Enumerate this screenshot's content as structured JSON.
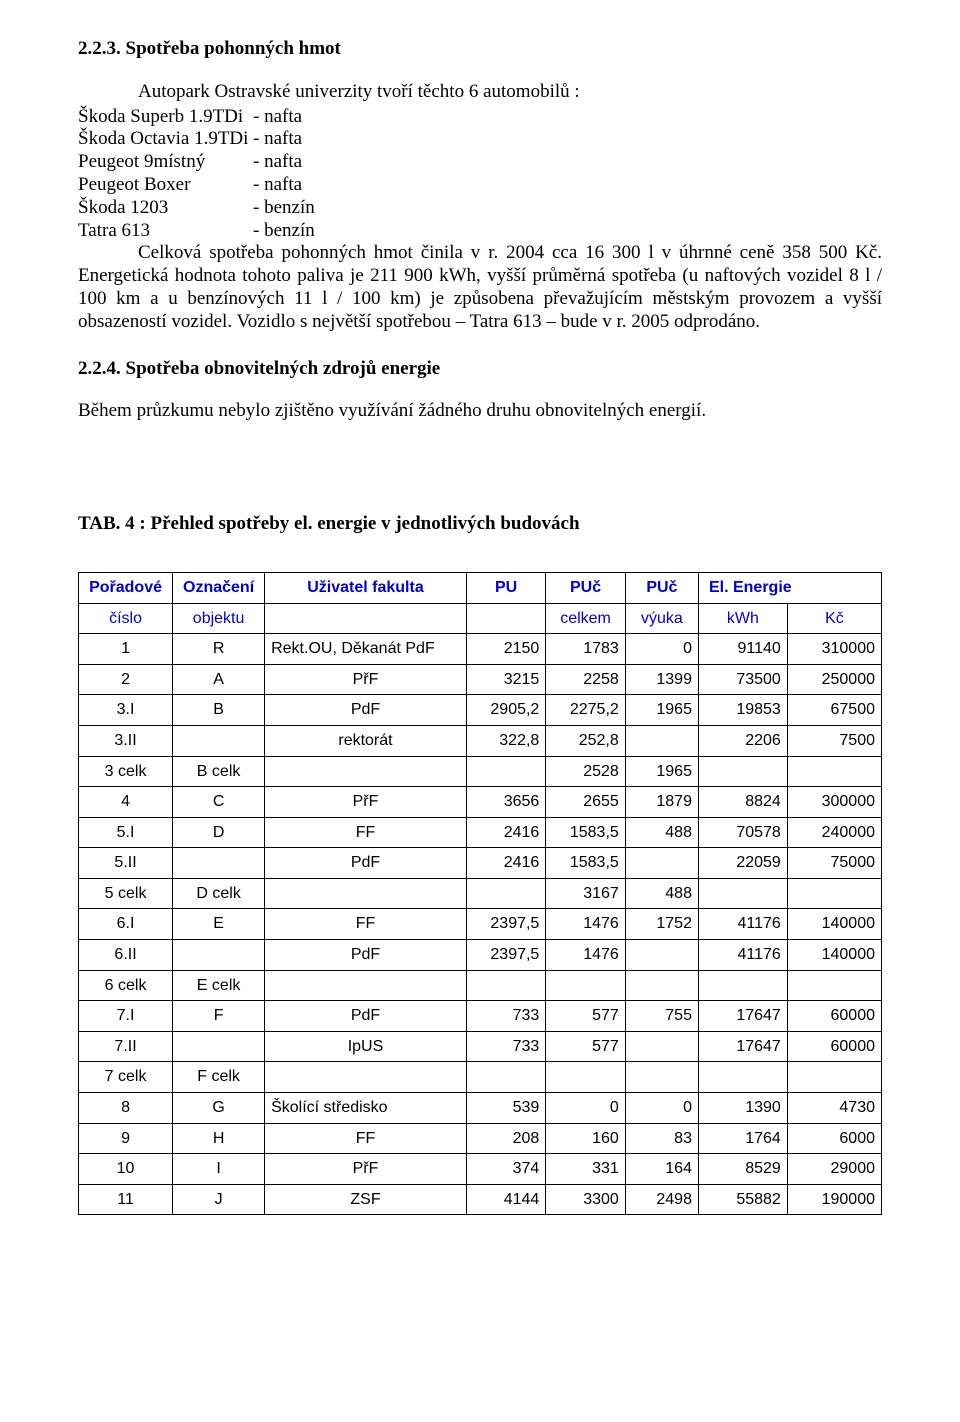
{
  "section_fuel": {
    "heading": "2.2.3. Spotřeba pohonných hmot",
    "intro": "Autopark Ostravské univerzity tvoří těchto 6 automobilů :",
    "vehicles": [
      {
        "name": "Škoda Superb 1.9TDi",
        "fuel": "- nafta"
      },
      {
        "name": "Škoda Octavia 1.9TDi",
        "fuel": "- nafta"
      },
      {
        "name": "Peugeot 9místný",
        "fuel": "- nafta"
      },
      {
        "name": "Peugeot Boxer",
        "fuel": "- nafta"
      },
      {
        "name": "Škoda 1203",
        "fuel": "- benzín"
      },
      {
        "name": "Tatra 613",
        "fuel": "- benzín"
      }
    ],
    "paragraph": "Celková spotřeba pohonných hmot činila v r. 2004 cca 16 300 l v úhrnné ceně 358 500 Kč. Energetická hodnota tohoto paliva je 211 900 kWh, vyšší průměrná spotřeba (u naftových vozidel 8 l / 100 km a u benzínových 11 l / 100 km) je způsobena převažujícím městským provozem a vyšší obsazeností vozidel. Vozidlo s největší spotřebou – Tatra 613 – bude v r. 2005 odprodáno."
  },
  "section_renew": {
    "heading": "2.2.4. Spotřeba obnovitelných zdrojů energie",
    "paragraph": "Během průzkumu nebylo zjištěno využívání žádného druhu obnovitelných energií."
  },
  "table": {
    "caption": "TAB. 4 : Přehled spotřeby el. energie v jednotlivých budovách",
    "head_row1": {
      "poradove": "Pořadové",
      "oznaceni": "Označení",
      "uzivatel": "Uživatel  fakulta",
      "pu": "PU",
      "puc": "PUč",
      "pucv": "PUč",
      "energie": "El. Energie"
    },
    "head_row2": {
      "poradove": "číslo",
      "oznaceni": "objektu",
      "uzivatel": "",
      "pu": "",
      "puc": "celkem",
      "pucv": "výuka",
      "kwh": "kWh",
      "kc": "Kč"
    },
    "rows": [
      {
        "c0": "1",
        "c1": "R",
        "c2": "Rekt.OU, Děkanát PdF",
        "c3": "2150",
        "c4": "1783",
        "c5": "0",
        "c6": "91140",
        "c7": "310000"
      },
      {
        "c0": "2",
        "c1": "A",
        "c2": "PřF",
        "c3": "3215",
        "c4": "2258",
        "c5": "1399",
        "c6": "73500",
        "c7": "250000"
      },
      {
        "c0": "3.I",
        "c1": "B",
        "c2": "PdF",
        "c3": "2905,2",
        "c4": "2275,2",
        "c5": "1965",
        "c6": "19853",
        "c7": "67500"
      },
      {
        "c0": "3.II",
        "c1": "",
        "c2": "rektorát",
        "c3": "322,8",
        "c4": "252,8",
        "c5": "",
        "c6": "2206",
        "c7": "7500"
      },
      {
        "c0": "3 celk",
        "c1": "B celk",
        "c2": "",
        "c3": "",
        "c4": "2528",
        "c5": "1965",
        "c6": "",
        "c7": ""
      },
      {
        "c0": "4",
        "c1": "C",
        "c2": "PřF",
        "c3": "3656",
        "c4": "2655",
        "c5": "1879",
        "c6": "8824",
        "c7": "300000"
      },
      {
        "c0": "5.I",
        "c1": "D",
        "c2": "FF",
        "c3": "2416",
        "c4": "1583,5",
        "c5": "488",
        "c6": "70578",
        "c7": "240000"
      },
      {
        "c0": "5.II",
        "c1": "",
        "c2": "PdF",
        "c3": "2416",
        "c4": "1583,5",
        "c5": "",
        "c6": "22059",
        "c7": "75000"
      },
      {
        "c0": "5 celk",
        "c1": "D celk",
        "c2": "",
        "c3": "",
        "c4": "3167",
        "c5": "488",
        "c6": "",
        "c7": ""
      },
      {
        "c0": "6.I",
        "c1": "E",
        "c2": "FF",
        "c3": "2397,5",
        "c4": "1476",
        "c5": "1752",
        "c6": "41176",
        "c7": "140000"
      },
      {
        "c0": "6.II",
        "c1": "",
        "c2": "PdF",
        "c3": "2397,5",
        "c4": "1476",
        "c5": "",
        "c6": "41176",
        "c7": "140000"
      },
      {
        "c0": "6 celk",
        "c1": "E celk",
        "c2": "",
        "c3": "",
        "c4": "",
        "c5": "",
        "c6": "",
        "c7": ""
      },
      {
        "c0": "7.I",
        "c1": "F",
        "c2": "PdF",
        "c3": "733",
        "c4": "577",
        "c5": "755",
        "c6": "17647",
        "c7": "60000"
      },
      {
        "c0": "7.II",
        "c1": "",
        "c2": "IpUS",
        "c3": "733",
        "c4": "577",
        "c5": "",
        "c6": "17647",
        "c7": "60000"
      },
      {
        "c0": "7 celk",
        "c1": "F celk",
        "c2": "",
        "c3": "",
        "c4": "",
        "c5": "",
        "c6": "",
        "c7": ""
      },
      {
        "c0": "8",
        "c1": "G",
        "c2": "Školící středisko",
        "c3": "539",
        "c4": "0",
        "c5": "0",
        "c6": "1390",
        "c7": "4730"
      },
      {
        "c0": "9",
        "c1": "H",
        "c2": "FF",
        "c3": "208",
        "c4": "160",
        "c5": "83",
        "c6": "1764",
        "c7": "6000"
      },
      {
        "c0": "10",
        "c1": "I",
        "c2": "PřF",
        "c3": "374",
        "c4": "331",
        "c5": "164",
        "c6": "8529",
        "c7": "29000"
      },
      {
        "c0": "11",
        "c1": "J",
        "c2": "ZSF",
        "c3": "4144",
        "c4": "3300",
        "c5": "2498",
        "c6": "55882",
        "c7": "190000"
      }
    ],
    "style": {
      "header_color": "#0000d0",
      "border_color": "#000000",
      "font_family": "Arial",
      "font_size_pt": 12
    }
  }
}
